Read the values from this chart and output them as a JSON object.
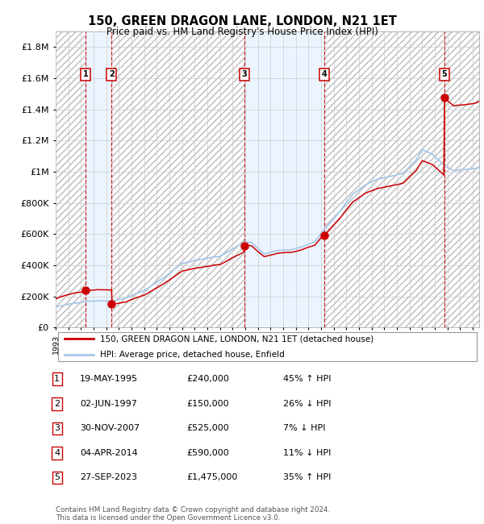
{
  "title": "150, GREEN DRAGON LANE, LONDON, N21 1ET",
  "subtitle": "Price paid vs. HM Land Registry's House Price Index (HPI)",
  "ylim": [
    0,
    1900000
  ],
  "yticks": [
    0,
    200000,
    400000,
    600000,
    800000,
    1000000,
    1200000,
    1400000,
    1600000,
    1800000
  ],
  "ytick_labels": [
    "£0",
    "£200K",
    "£400K",
    "£600K",
    "£800K",
    "£1M",
    "£1.2M",
    "£1.4M",
    "£1.6M",
    "£1.8M"
  ],
  "xlim_start": 1993.0,
  "xlim_end": 2026.5,
  "sale_points": [
    {
      "label": "1",
      "date_year": 1995.38,
      "price": 240000
    },
    {
      "label": "2",
      "date_year": 1997.42,
      "price": 150000
    },
    {
      "label": "3",
      "date_year": 2007.92,
      "price": 525000
    },
    {
      "label": "4",
      "date_year": 2014.25,
      "price": 590000
    },
    {
      "label": "5",
      "date_year": 2023.75,
      "price": 1475000
    }
  ],
  "legend_line1": "150, GREEN DRAGON LANE, LONDON, N21 1ET (detached house)",
  "legend_line2": "HPI: Average price, detached house, Enfield",
  "table_rows": [
    [
      "1",
      "19-MAY-1995",
      "£240,000",
      "45% ↑ HPI"
    ],
    [
      "2",
      "02-JUN-1997",
      "£150,000",
      "26% ↓ HPI"
    ],
    [
      "3",
      "30-NOV-2007",
      "£525,000",
      "7% ↓ HPI"
    ],
    [
      "4",
      "04-APR-2014",
      "£590,000",
      "11% ↓ HPI"
    ],
    [
      "5",
      "27-SEP-2023",
      "£1,475,000",
      "35% ↑ HPI"
    ]
  ],
  "footnote": "Contains HM Land Registry data © Crown copyright and database right 2024.\nThis data is licensed under the Open Government Licence v3.0.",
  "hpi_color": "#a8c8e8",
  "price_color": "#cc0000",
  "dashed_line_color": "#cc0000",
  "hatch_color": "#bbbbbb",
  "sale_bg_color": "#ddeeff"
}
